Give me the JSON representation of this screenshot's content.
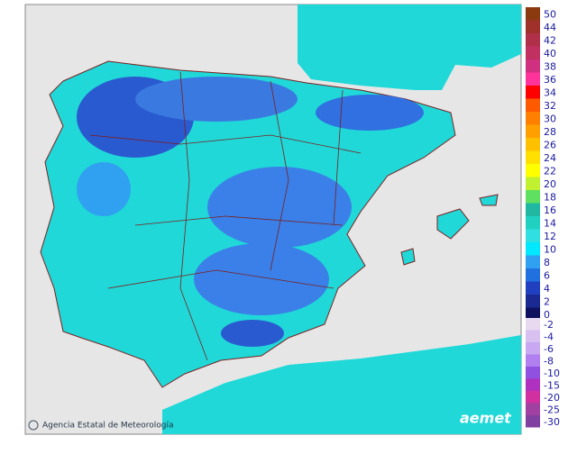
{
  "map": {
    "credit": "Agencia Estatal de Meteorología",
    "logo": "aemet"
  },
  "legend": {
    "upper": [
      {
        "value": 50,
        "color": "#8b3a0f"
      },
      {
        "value": 44,
        "color": "#a0302a"
      },
      {
        "value": 42,
        "color": "#b0304a"
      },
      {
        "value": 40,
        "color": "#c03060"
      },
      {
        "value": 38,
        "color": "#d03080"
      },
      {
        "value": 36,
        "color": "#ff3399"
      },
      {
        "value": 34,
        "color": "#ff0000"
      },
      {
        "value": 32,
        "color": "#ff5a00"
      },
      {
        "value": 30,
        "color": "#ff8000"
      },
      {
        "value": 28,
        "color": "#ffa000"
      },
      {
        "value": 26,
        "color": "#ffc000"
      },
      {
        "value": 24,
        "color": "#ffe000"
      },
      {
        "value": 22,
        "color": "#ffff00"
      },
      {
        "value": 20,
        "color": "#c0f030"
      },
      {
        "value": 18,
        "color": "#60e060"
      },
      {
        "value": 16,
        "color": "#20b8a0"
      },
      {
        "value": 14,
        "color": "#20d0c0"
      },
      {
        "value": 12,
        "color": "#30e0e0"
      },
      {
        "value": 10,
        "color": "#00e8ff"
      },
      {
        "value": 8,
        "color": "#30a0f0"
      },
      {
        "value": 6,
        "color": "#2070e0"
      },
      {
        "value": 4,
        "color": "#2040c0"
      },
      {
        "value": 2,
        "color": "#1a2a90"
      },
      {
        "value": 0,
        "color": "#101060"
      }
    ],
    "lower": [
      {
        "value": -2,
        "color": "#e8d8f0"
      },
      {
        "value": -4,
        "color": "#d8c0f0"
      },
      {
        "value": -6,
        "color": "#c8a8f0"
      },
      {
        "value": -8,
        "color": "#b080f0"
      },
      {
        "value": -10,
        "color": "#9050e0"
      },
      {
        "value": -15,
        "color": "#b030c0"
      },
      {
        "value": -20,
        "color": "#d030a0"
      },
      {
        "value": -25,
        "color": "#a040a0"
      },
      {
        "value": -30,
        "color": "#8040a0"
      }
    ]
  }
}
